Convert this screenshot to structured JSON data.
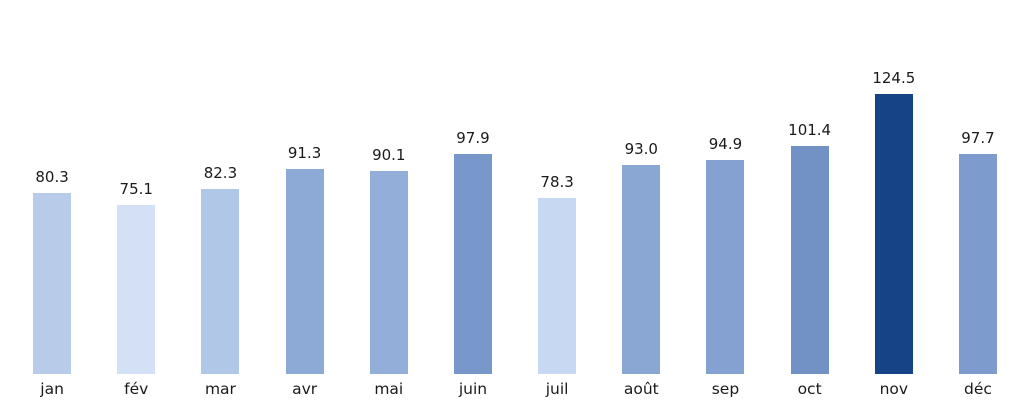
{
  "chart_data": {
    "type": "bar",
    "categories": [
      "jan",
      "fév",
      "mar",
      "avr",
      "mai",
      "juin",
      "juil",
      "août",
      "sep",
      "oct",
      "nov",
      "déc"
    ],
    "values": [
      80.3,
      75.1,
      82.3,
      91.3,
      90.1,
      97.9,
      78.3,
      93.0,
      94.9,
      101.4,
      124.5,
      97.7
    ],
    "value_labels": [
      "80.3",
      "75.1",
      "82.3",
      "91.3",
      "90.1",
      "97.9",
      "78.3",
      "93.0",
      "94.9",
      "101.4",
      "124.5",
      "97.7"
    ],
    "bar_colors": [
      "#b8cce9",
      "#d3e0f6",
      "#b1c7e7",
      "#8caad5",
      "#93aed8",
      "#7897ca",
      "#c6d8f2",
      "#8aa6d3",
      "#84a1d1",
      "#7292c5",
      "#164286",
      "#7d9ccd"
    ],
    "title": "",
    "xlabel": "",
    "ylabel": "",
    "ylim": [
      0,
      131
    ],
    "grid": false,
    "axes_visible": false,
    "legend": null,
    "color_encoding": "bar shade darkens with value (light blue = low, dark navy = high)",
    "max_category": "nov",
    "min_category": "fév",
    "text_color": "#1a1a1a",
    "background_color": "#ffffff"
  }
}
